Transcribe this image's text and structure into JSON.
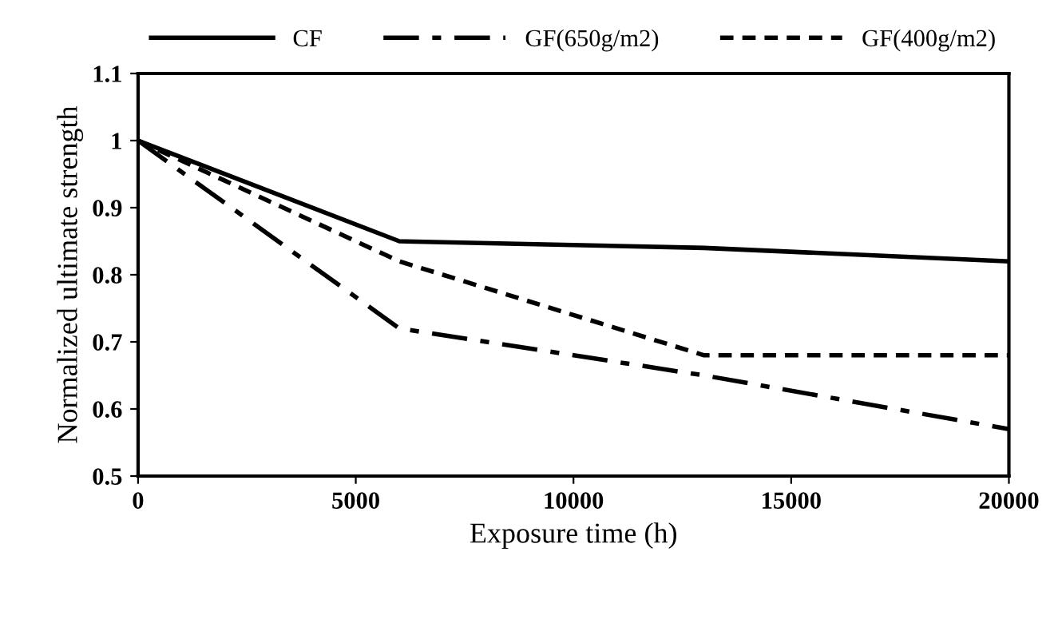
{
  "chart_data": {
    "type": "line",
    "xlabel": "Exposure time (h)",
    "ylabel": "Normalized ultimate strength",
    "x": [
      0,
      6000,
      13000,
      20000
    ],
    "series": [
      {
        "name": "CF",
        "color": "#000000",
        "line_style": "solid",
        "values": [
          1,
          0.85,
          0.84,
          0.82
        ]
      },
      {
        "name": "GF(650g/m2)",
        "color": "#000000",
        "line_style": "dashdot",
        "values": [
          1,
          0.72,
          0.65,
          0.57
        ]
      },
      {
        "name": "GF(400g/m2)",
        "color": "#000000",
        "line_style": "dashed",
        "values": [
          1,
          0.82,
          0.68,
          0.68
        ]
      }
    ],
    "xlim": [
      0,
      20000
    ],
    "xticks": [
      0,
      5000,
      10000,
      15000,
      20000
    ],
    "ylim": [
      0.5,
      1.1
    ],
    "yticks": [
      0.5,
      0.6,
      0.7,
      0.8,
      0.9,
      1,
      1.1
    ],
    "grid": false,
    "legend": "top",
    "marker": "none"
  }
}
